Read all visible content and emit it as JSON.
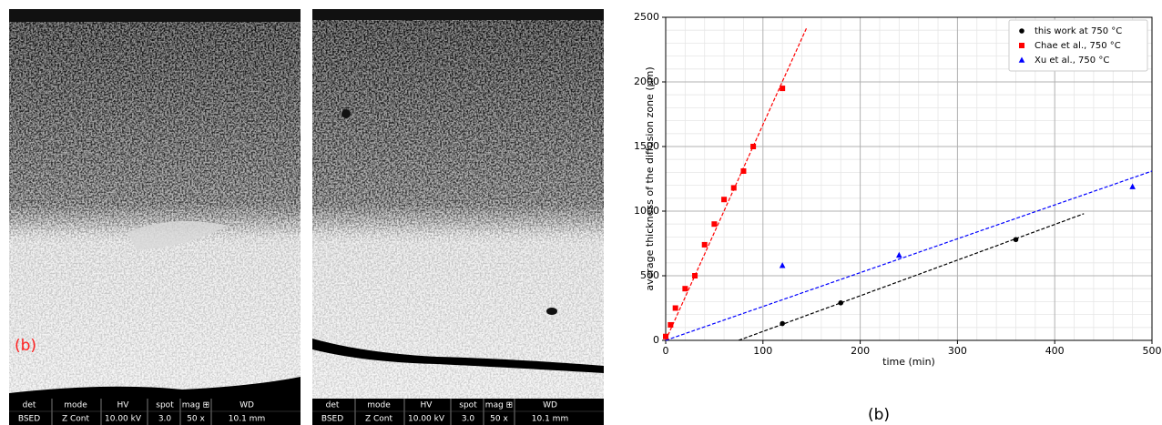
{
  "sem_images": [
    {
      "label": "(b)",
      "info_bar": {
        "headers": [
          "det",
          "mode",
          "HV",
          "spot",
          "mag ⊞",
          "WD"
        ],
        "values": [
          "BSED",
          "Z Cont",
          "10.00 kV",
          "3.0",
          "50 x",
          "10.1 mm"
        ]
      }
    },
    {
      "info_bar": {
        "headers": [
          "det",
          "mode",
          "HV",
          "spot",
          "mag ⊞",
          "WD"
        ],
        "values": [
          "BSED",
          "Z Cont",
          "10.00 kV",
          "3.0",
          "50 x",
          "10.1 mm"
        ]
      }
    }
  ],
  "chart_data": {
    "type": "scatter",
    "x_label": "time (min)",
    "y_label": "average thickness of the diffusion zone (μm)",
    "xlim": [
      0,
      500
    ],
    "ylim": [
      0,
      2500
    ],
    "xticks": [
      0,
      100,
      200,
      300,
      400,
      500
    ],
    "yticks": [
      0,
      500,
      1000,
      1500,
      2000,
      2500
    ],
    "grid": true,
    "minor_divisions": 5,
    "legend": "upper right",
    "series": [
      {
        "name": "this work at 750 °C",
        "color": "#000000",
        "marker": "circle",
        "x": [
          120,
          180,
          360
        ],
        "values": [
          130,
          290,
          780
        ]
      },
      {
        "name": "Chae et al., 750 °C",
        "color": "#ff0000",
        "marker": "square",
        "x": [
          0,
          5,
          10,
          20,
          30,
          40,
          50,
          60,
          70,
          80,
          90,
          120
        ],
        "values": [
          30,
          120,
          250,
          400,
          500,
          740,
          900,
          1090,
          1180,
          1310,
          1500,
          1950
        ]
      },
      {
        "name": "Xu et al., 750 °C",
        "color": "#0000ff",
        "marker": "triangle",
        "x": [
          120,
          240,
          480
        ],
        "values": [
          580,
          660,
          1190
        ]
      }
    ],
    "fit_lines": [
      {
        "color": "#000000",
        "x": [
          75,
          430
        ],
        "values": [
          0,
          980
        ]
      },
      {
        "color": "#ff0000",
        "x": [
          0,
          145
        ],
        "values": [
          0,
          2420
        ]
      },
      {
        "color": "#0000ff",
        "x": [
          0,
          500
        ],
        "values": [
          0,
          1310
        ]
      }
    ]
  },
  "caption": "(b)"
}
